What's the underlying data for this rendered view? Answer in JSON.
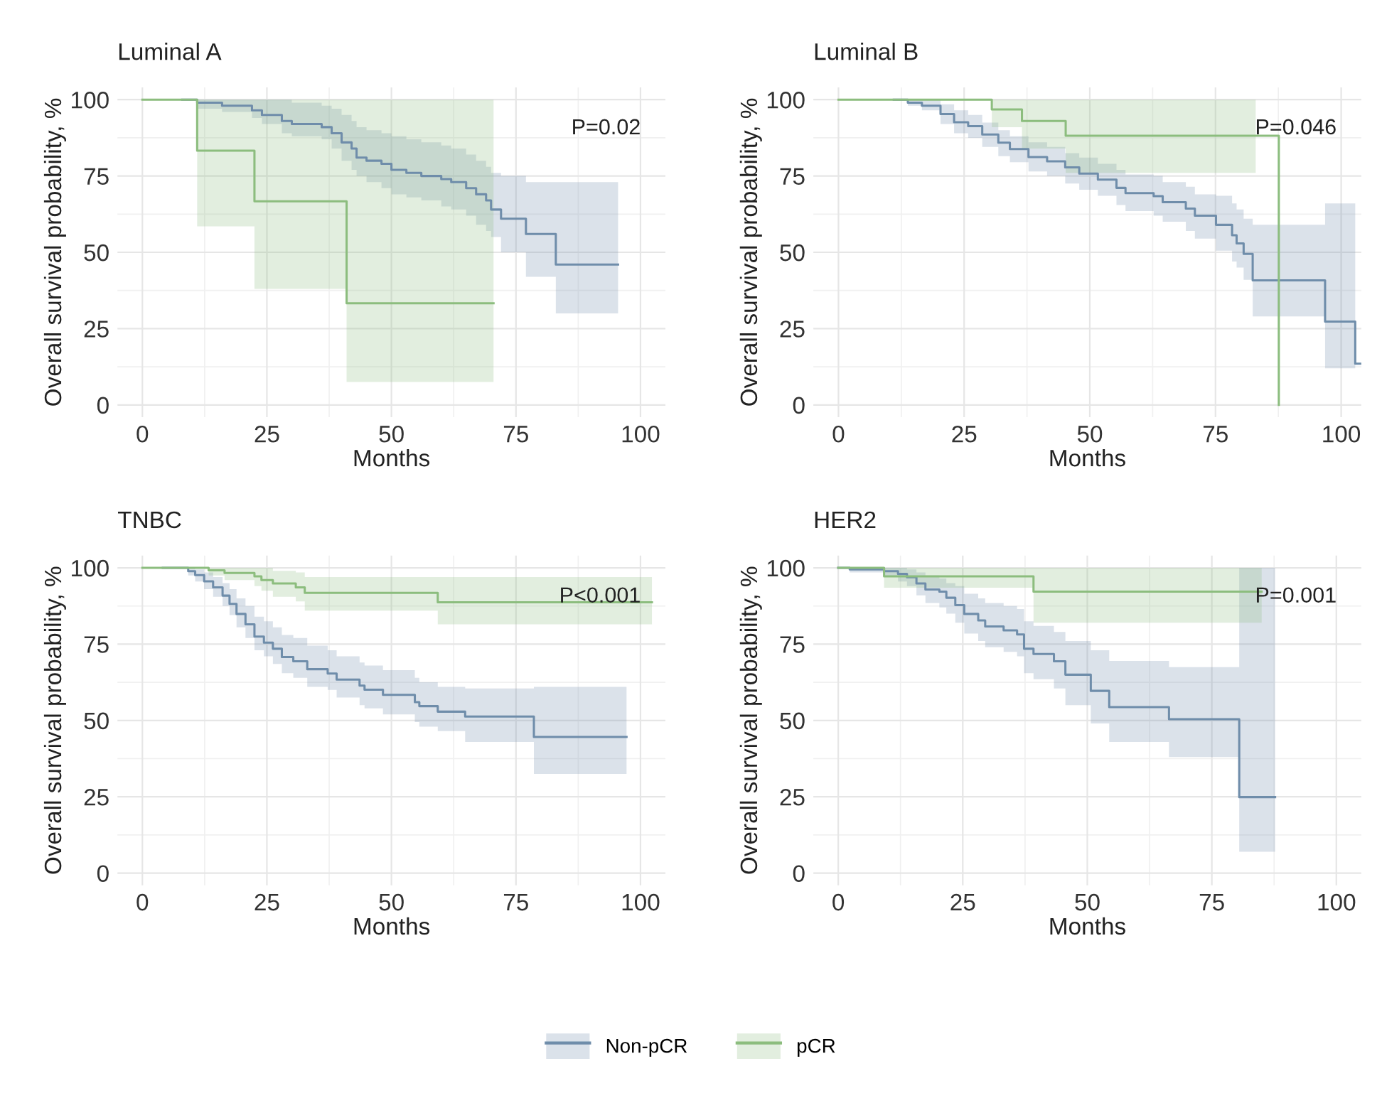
{
  "chart_data": [
    {
      "type": "step",
      "title": "Luminal A",
      "xlabel": "Months",
      "ylabel": "Overall survival probability, %",
      "xlim": [
        -5,
        105
      ],
      "ylim": [
        -4,
        104
      ],
      "xticks": [
        0,
        25,
        50,
        75,
        100
      ],
      "yticks": [
        0,
        25,
        50,
        75,
        100
      ],
      "grid": true,
      "legend": "bottom",
      "annotations": [
        "P=0.02"
      ],
      "series": [
        {
          "name": "Non-pCR",
          "color": "#6f8daa",
          "x": [
            8,
            11,
            16,
            22,
            24,
            28,
            30,
            36,
            38,
            40,
            42,
            43,
            45,
            48,
            50,
            53,
            56,
            60,
            62,
            65,
            67,
            69,
            70,
            72,
            77,
            83,
            95.5
          ],
          "values": [
            100,
            99,
            98,
            96.5,
            95,
            93,
            92,
            91,
            89,
            86,
            84,
            81,
            80,
            79,
            77,
            76,
            75,
            74,
            73,
            71,
            69,
            67,
            64,
            61,
            56,
            46,
            46
          ],
          "upper": [
            100,
            100,
            100,
            100,
            100,
            100,
            99,
            98,
            97,
            95,
            93,
            91,
            90,
            89,
            88,
            87,
            86,
            85,
            84,
            82,
            80,
            78,
            76,
            75,
            73,
            73,
            73
          ],
          "lower": [
            100,
            97,
            96,
            94,
            92,
            89,
            88,
            87,
            84,
            80,
            77,
            75,
            73,
            71,
            69,
            68,
            67,
            65,
            64,
            62,
            59,
            57,
            55,
            50,
            42,
            30,
            30
          ]
        },
        {
          "name": "pCR",
          "color": "#8cbd7e",
          "x": [
            0,
            11,
            22.5,
            41,
            70.5
          ],
          "values": [
            100,
            83.3,
            66.7,
            33.3,
            33.3
          ],
          "upper": [
            100,
            100,
            100,
            100,
            100
          ],
          "lower": [
            100,
            58.5,
            38,
            7.5,
            7.5
          ]
        }
      ]
    },
    {
      "type": "step",
      "title": "Luminal B",
      "xlabel": "Months",
      "ylabel": "Overall survival probability, %",
      "xlim": [
        -5,
        104
      ],
      "ylim": [
        -4,
        104
      ],
      "xticks": [
        0,
        25,
        50,
        75,
        100
      ],
      "yticks": [
        0,
        25,
        50,
        75,
        100
      ],
      "grid": true,
      "legend": "bottom",
      "annotations": [
        "P=0.046"
      ],
      "series": [
        {
          "name": "Non-pCR",
          "color": "#6f8daa",
          "x": [
            11,
            13.8,
            16.6,
            20.3,
            23,
            25.8,
            28.6,
            31.8,
            34.1,
            37.8,
            41.5,
            45.1,
            47.9,
            51.6,
            55.3,
            57.1,
            62.7,
            64.5,
            69.1,
            70.9,
            75.1,
            78.3,
            79.2,
            80.6,
            82.4,
            96.8,
            102.8,
            104
          ],
          "values": [
            100,
            99,
            98,
            95.3,
            92.6,
            91.3,
            88.6,
            85.9,
            83.8,
            81.2,
            79.8,
            77.8,
            75.8,
            73.8,
            71.1,
            69.4,
            68.4,
            66.4,
            64.3,
            62,
            59,
            55.6,
            52.9,
            49.5,
            40.8,
            27.3,
            13.5,
            13.5
          ],
          "upper": [
            100,
            100,
            100,
            98.5,
            96.5,
            95,
            92.5,
            90,
            88,
            86,
            84.5,
            82.5,
            81,
            79,
            77,
            75.5,
            75,
            73,
            71.5,
            69,
            68.5,
            66,
            64,
            61,
            59,
            66,
            66,
            null
          ],
          "lower": [
            100,
            98,
            96.5,
            92,
            89,
            87.5,
            84.5,
            81.5,
            79.5,
            76.5,
            75,
            72.5,
            70.5,
            68.5,
            65.5,
            63.5,
            62,
            60,
            57,
            54.5,
            50.5,
            47,
            45,
            41,
            29,
            12,
            12,
            null
          ]
        },
        {
          "name": "pCR",
          "color": "#8cbd7e",
          "x": [
            0,
            30.5,
            36.5,
            45.2,
            83,
            87.6
          ],
          "values": [
            100,
            96.8,
            93,
            88.2,
            88.2,
            0
          ],
          "upper": [
            100,
            100,
            100,
            100,
            100,
            null
          ],
          "lower": [
            100,
            91,
            84,
            76,
            76,
            null
          ]
        }
      ]
    },
    {
      "type": "step",
      "title": "TNBC",
      "xlabel": "Months",
      "ylabel": "Overall survival probability, %",
      "xlim": [
        -5,
        105
      ],
      "ylim": [
        -4,
        104
      ],
      "xticks": [
        0,
        25,
        50,
        75,
        100
      ],
      "yticks": [
        0,
        25,
        50,
        75,
        100
      ],
      "grid": true,
      "legend": "bottom",
      "annotations": [
        "P<0.001"
      ],
      "series": [
        {
          "name": "Non-pCR",
          "color": "#6f8daa",
          "x": [
            4.1,
            9.2,
            10.6,
            12.4,
            14.2,
            16.1,
            17.5,
            18.9,
            20.7,
            22.5,
            24.4,
            26.2,
            28,
            30.3,
            33.1,
            37.2,
            39,
            43.6,
            44.6,
            48.3,
            54.7,
            55.6,
            59.3,
            64.8,
            78.6,
            97.2
          ],
          "values": [
            100,
            98.9,
            97.6,
            95.6,
            93.6,
            90.9,
            88.2,
            84.9,
            81.5,
            77.5,
            75.5,
            73.5,
            70.8,
            69.4,
            66.8,
            65.4,
            63.4,
            61.4,
            60.1,
            58.4,
            56,
            54.7,
            52.9,
            51.3,
            44.6,
            44.6
          ],
          "upper": [
            100,
            100,
            99.5,
            98.5,
            97,
            95,
            93,
            90,
            87.5,
            84,
            82.5,
            80.5,
            78,
            77,
            74.5,
            73,
            71,
            69,
            68,
            66.5,
            64,
            62.5,
            61,
            60.5,
            61,
            61
          ],
          "lower": [
            100,
            97.5,
            95.5,
            93,
            90.5,
            87.5,
            84.5,
            80.5,
            77,
            73,
            71,
            68.5,
            65.5,
            64,
            61,
            60,
            57.5,
            55,
            54,
            52,
            49.5,
            48,
            46.5,
            43,
            32.5,
            32.5
          ]
        },
        {
          "name": "pCR",
          "color": "#8cbd7e",
          "x": [
            0,
            13.3,
            16.5,
            22.5,
            23.9,
            26.2,
            30.8,
            32.6,
            59.3,
            102.3
          ],
          "values": [
            100,
            99.2,
            98.3,
            97.2,
            96,
            94.9,
            93.6,
            91.8,
            88.7,
            88.7
          ],
          "upper": [
            100,
            100,
            100,
            100,
            100,
            99,
            98.5,
            97,
            97,
            97
          ],
          "lower": [
            100,
            97.5,
            96,
            94,
            92.5,
            90.5,
            89,
            86,
            81.5,
            81.5
          ]
        }
      ]
    },
    {
      "type": "step",
      "title": "HER2",
      "xlabel": "Months",
      "ylabel": "Overall survival probability, %",
      "xlim": [
        -5,
        105
      ],
      "ylim": [
        -4,
        104
      ],
      "xticks": [
        0,
        25,
        50,
        75,
        100
      ],
      "yticks": [
        0,
        25,
        50,
        75,
        100
      ],
      "grid": true,
      "legend": "bottom",
      "annotations": [
        "P=0.001"
      ],
      "series": [
        {
          "name": "Non-pCR",
          "color": "#6f8daa",
          "x": [
            0,
            2.3,
            9.2,
            12,
            13.8,
            15.7,
            17.5,
            20.3,
            21.7,
            23.5,
            25.3,
            28.1,
            29.5,
            33.2,
            35.9,
            37.3,
            39.2,
            43.3,
            45.6,
            50.7,
            54.4,
            66.4,
            80.5,
            87.7
          ],
          "values": [
            100,
            99.5,
            98.9,
            98,
            96.9,
            94.9,
            92.9,
            92.2,
            90.2,
            87.8,
            84.9,
            82.8,
            80.8,
            79.5,
            78.2,
            73.5,
            71.8,
            69.4,
            65,
            59.7,
            54.4,
            50.4,
            24.9,
            24.9
          ],
          "upper": [
            100,
            100,
            100,
            100,
            99.5,
            98.5,
            97.5,
            96.5,
            95,
            94,
            91.5,
            90,
            88.5,
            87.5,
            86.5,
            82.5,
            81,
            79,
            76,
            73,
            69.5,
            67.5,
            100,
            100
          ],
          "lower": [
            100,
            98.5,
            97,
            95.5,
            94,
            91,
            88.5,
            87,
            85,
            82,
            78.5,
            76,
            74,
            72.5,
            71,
            65.5,
            63.5,
            60.5,
            55,
            49,
            43,
            38,
            7,
            7
          ]
        },
        {
          "name": "pCR",
          "color": "#8cbd7e",
          "x": [
            0,
            9.2,
            39.2,
            85
          ],
          "values": [
            100,
            97.2,
            92.2,
            92.2
          ],
          "upper": [
            100,
            100,
            100,
            100
          ],
          "lower": [
            100,
            93.5,
            82,
            82
          ]
        }
      ]
    }
  ]
}
